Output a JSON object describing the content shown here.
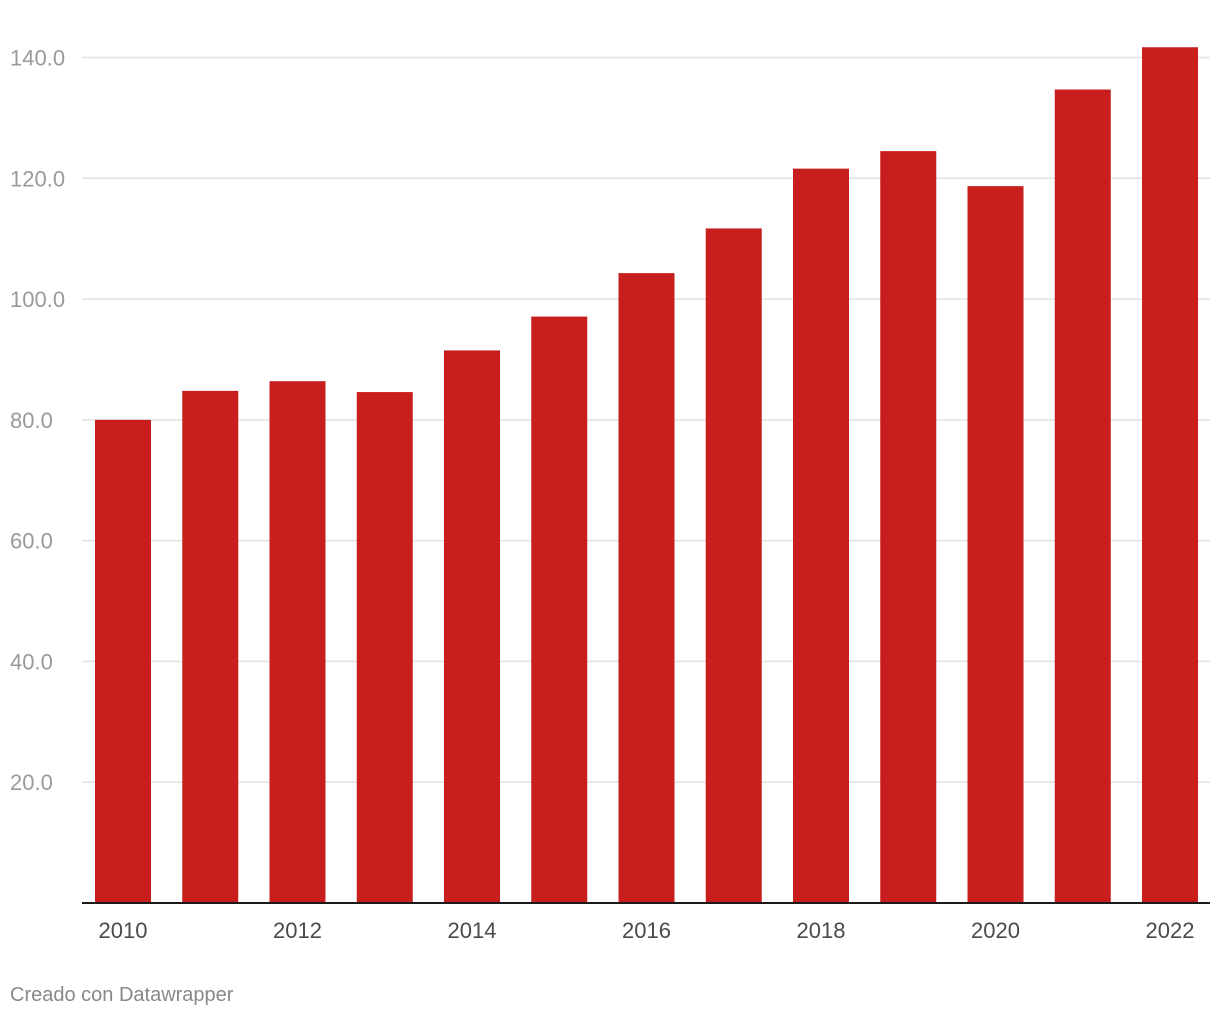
{
  "chart_data": {
    "type": "bar",
    "categories": [
      "2010",
      "2011",
      "2012",
      "2013",
      "2014",
      "2015",
      "2016",
      "2017",
      "2018",
      "2019",
      "2020",
      "2021",
      "2022"
    ],
    "values": [
      80.0,
      84.8,
      86.4,
      84.6,
      91.5,
      97.1,
      104.3,
      111.7,
      121.6,
      124.5,
      118.7,
      134.7,
      141.7
    ],
    "x_tick_labels": [
      "2010",
      "2012",
      "2014",
      "2016",
      "2018",
      "2020",
      "2022"
    ],
    "y_ticks": [
      20,
      40,
      60,
      80,
      100,
      120,
      140
    ],
    "y_tick_labels": [
      "20.0",
      "40.0",
      "60.0",
      "80.0",
      "100.0",
      "120.0",
      "140.0"
    ],
    "ylim": [
      0,
      140
    ],
    "title": "",
    "xlabel": "",
    "ylabel": "",
    "grid": true,
    "bar_color": "#c81e1e"
  },
  "footer": {
    "credit": "Creado con Datawrapper"
  }
}
